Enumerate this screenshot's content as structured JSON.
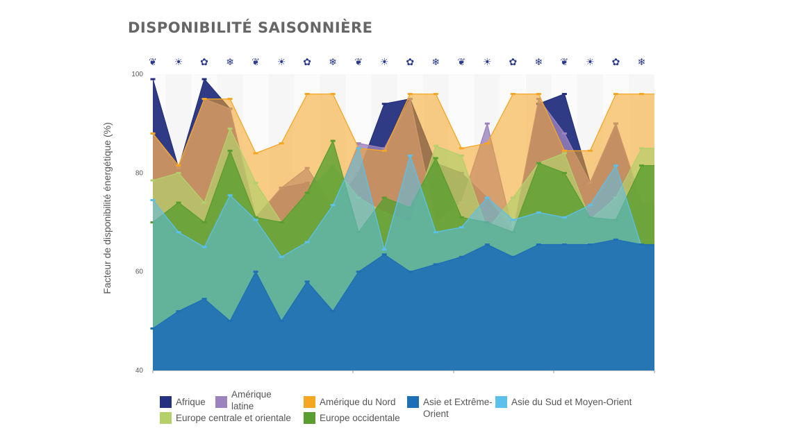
{
  "chart_data": {
    "type": "area",
    "title": "DISPONIBILITÉ SAISONNIÈRE",
    "ylabel": "Facteur de disponibilité énergétique (%)",
    "ylim": [
      40,
      100
    ],
    "yticks": [
      "40",
      "60",
      "80",
      "100"
    ],
    "season_icons": [
      "leaf-icon",
      "sun-icon",
      "flower-icon",
      "snowflake-icon",
      "leaf-icon",
      "sun-icon",
      "flower-icon",
      "snowflake-icon",
      "leaf-icon",
      "sun-icon",
      "flower-icon",
      "snowflake-icon",
      "leaf-icon",
      "sun-icon",
      "flower-icon",
      "snowflake-icon",
      "leaf-icon",
      "sun-icon",
      "flower-icon",
      "snowflake-icon"
    ],
    "x_periods": 20,
    "grid": false,
    "legend_position": "bottom",
    "series": [
      {
        "name": "Afrique",
        "color": "#25307e",
        "values": [
          99,
          81,
          99,
          93,
          71,
          77,
          78,
          73,
          80,
          94,
          95,
          82,
          80,
          75,
          68,
          94,
          96,
          78,
          90,
          74
        ]
      },
      {
        "name": "Amérique latine",
        "color": "#9b83bd",
        "values": [
          88,
          81,
          95,
          93,
          71,
          77,
          81,
          73,
          86,
          85,
          95,
          70,
          74,
          90,
          68,
          95,
          88,
          78,
          90,
          74
        ]
      },
      {
        "name": "Amérique du Nord",
        "color": "#f5a623",
        "values": [
          88,
          81.5,
          95,
          95,
          84,
          86,
          96,
          96,
          85,
          84.5,
          96,
          96,
          85,
          86,
          96,
          96,
          84.5,
          84.5,
          96,
          96
        ]
      },
      {
        "name": "Asie et Extrême-Orient",
        "color": "#1e6fb5",
        "values": [
          48.5,
          52,
          54.5,
          50,
          60,
          50,
          58,
          52,
          60,
          63.5,
          60,
          61.5,
          63,
          65.5,
          63,
          65.5,
          65.5,
          65.5,
          66.5,
          65.5
        ]
      },
      {
        "name": "Asie du Sud et Moyen-Orient",
        "color": "#5bc0eb",
        "values": [
          74.5,
          68,
          65,
          75.5,
          70.5,
          63,
          66,
          73.5,
          85,
          64.5,
          83.5,
          68,
          69,
          75,
          70.5,
          72,
          71,
          73.5,
          81.5,
          65
        ]
      },
      {
        "name": "Europe centrale et orientale",
        "color": "#b5cf6b",
        "values": [
          78.5,
          80,
          74,
          89,
          78,
          70,
          76,
          81.5,
          75,
          72,
          70,
          85.5,
          83.5,
          68.5,
          75,
          82,
          84,
          70.5,
          75,
          85
        ]
      },
      {
        "name": "Europe occidentale",
        "color": "#5a9e2f",
        "values": [
          70,
          74,
          70,
          84.5,
          71,
          70,
          76,
          86.5,
          68,
          75,
          73,
          83,
          71,
          70,
          68,
          82,
          80,
          71,
          70.5,
          81.5
        ]
      }
    ]
  }
}
